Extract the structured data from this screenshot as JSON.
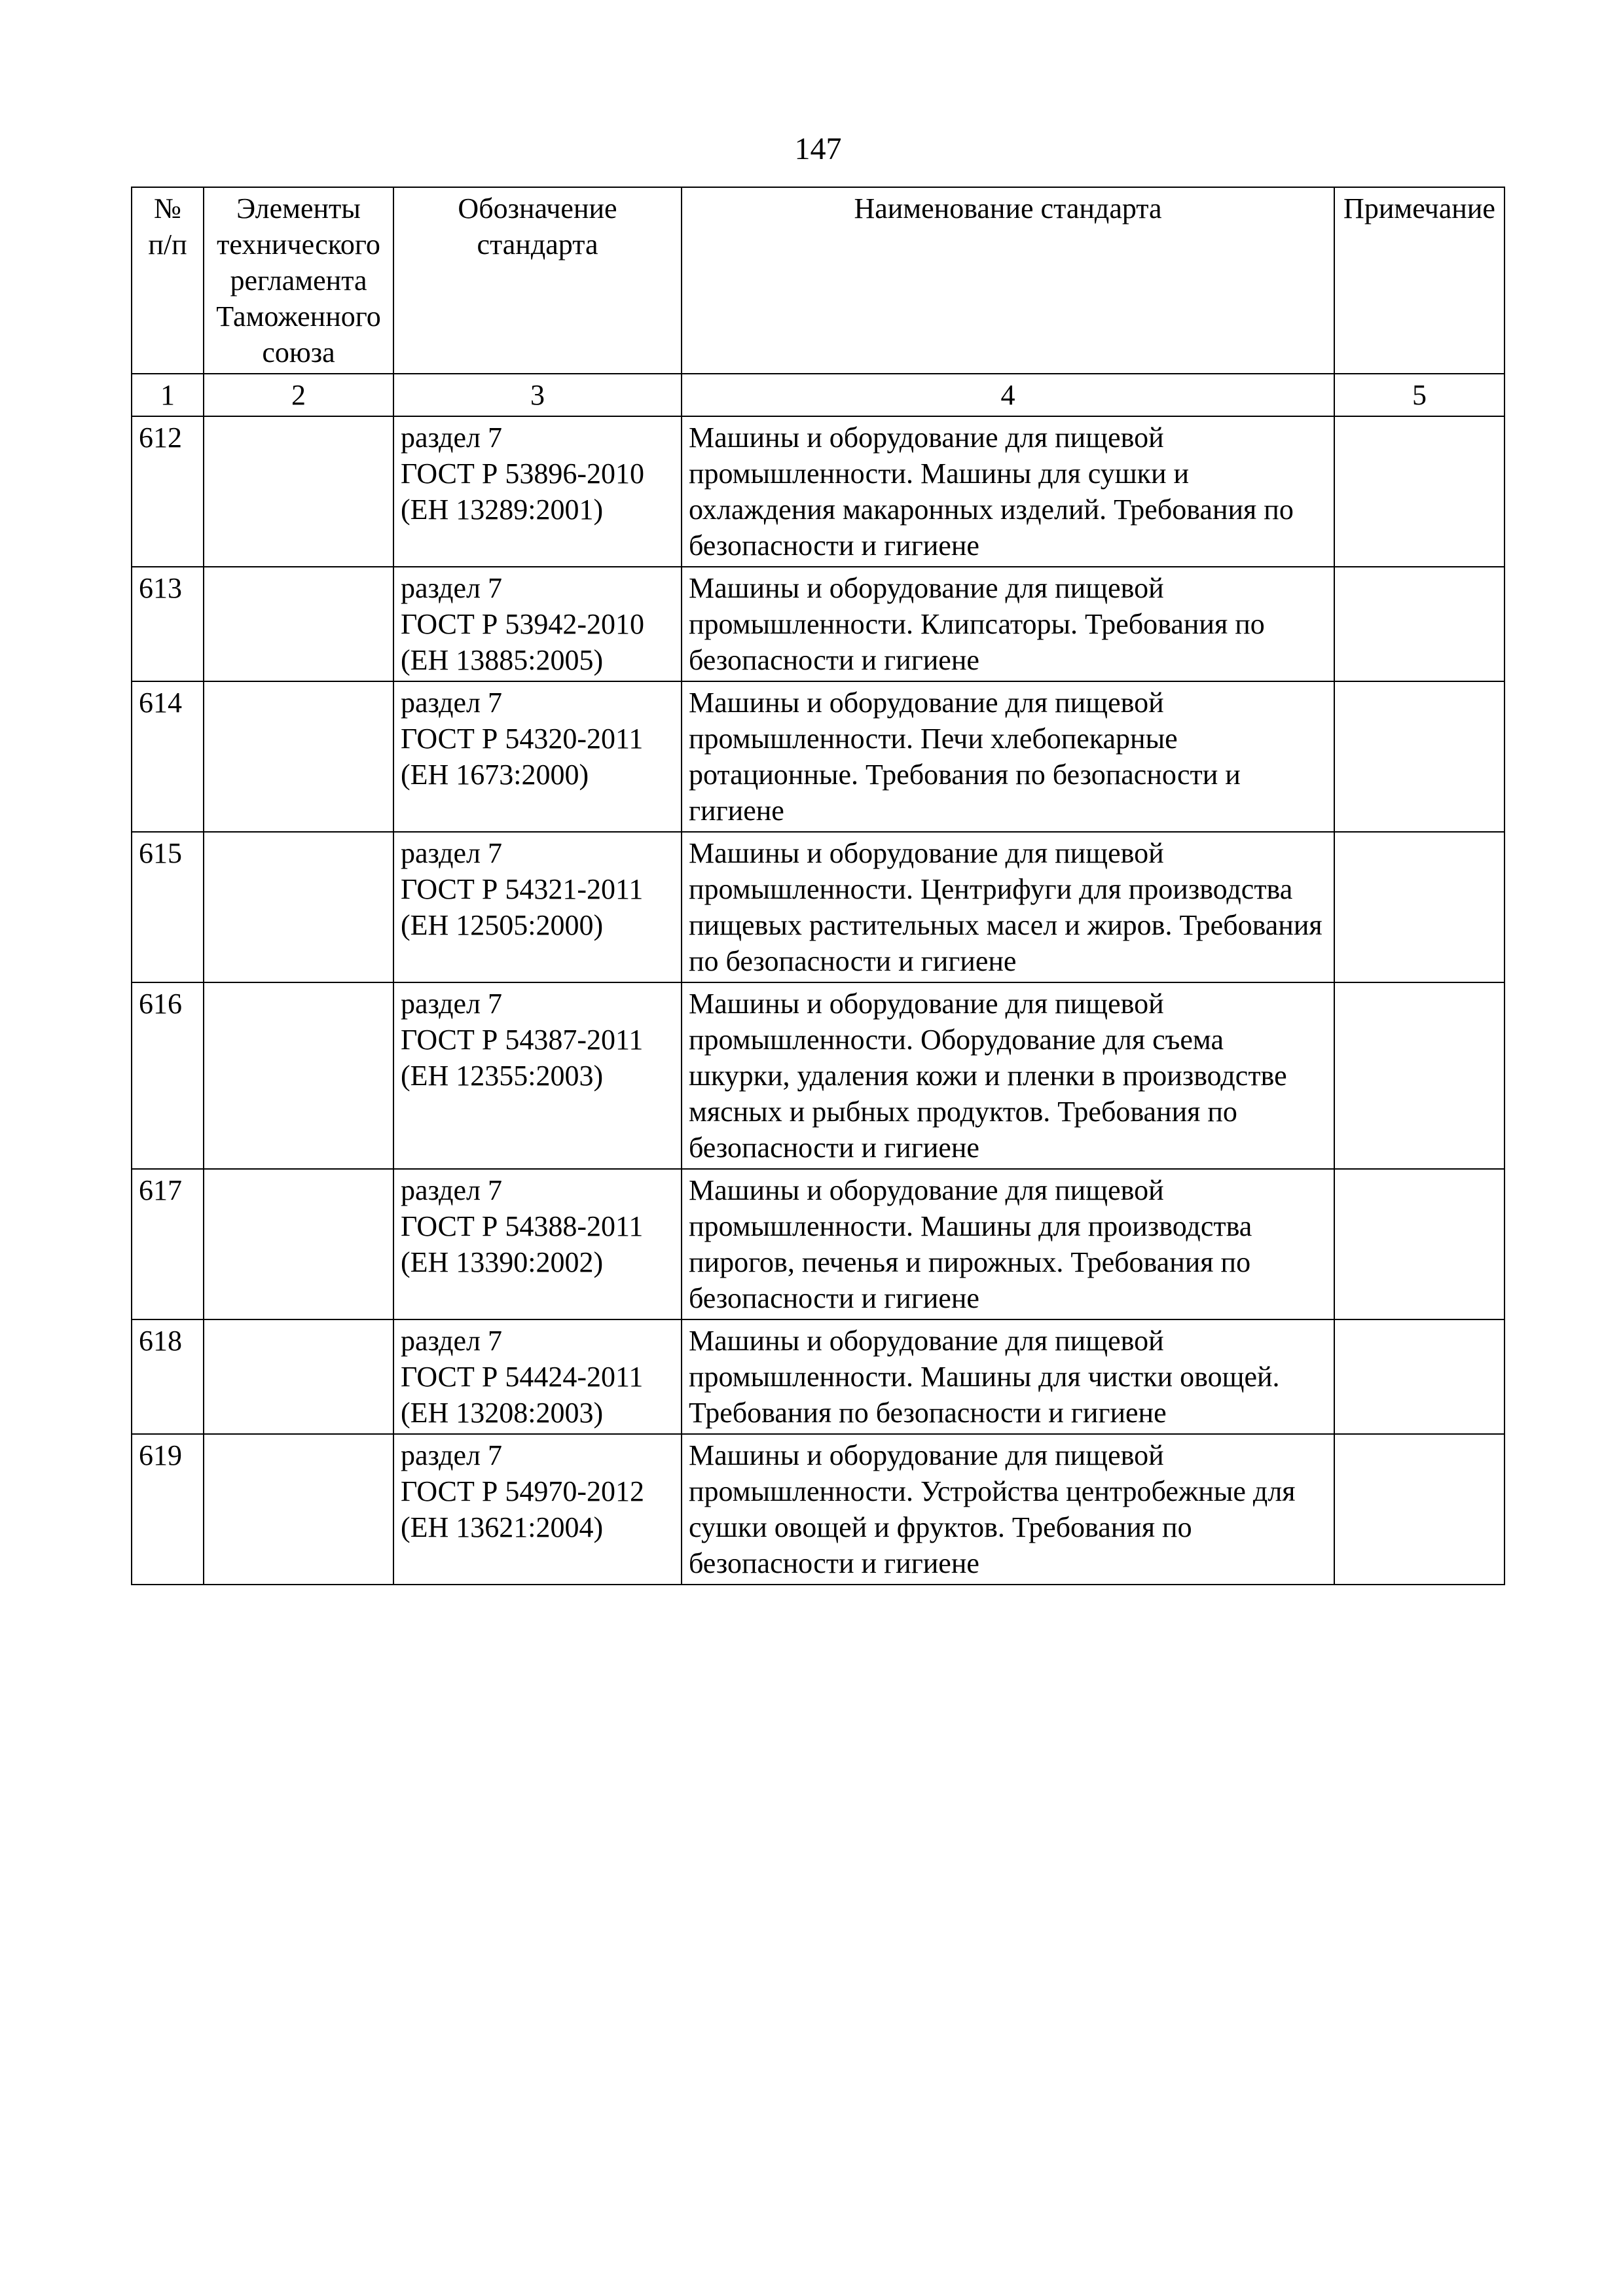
{
  "pageNumber": "147",
  "headers": {
    "c1": "№ п/п",
    "c2": "Элементы технического регламента Таможенного союза",
    "c3": "Обозначение стандарта",
    "c4": "Наименование стандарта",
    "c5": "Примечание"
  },
  "numRow": {
    "c1": "1",
    "c2": "2",
    "c3": "3",
    "c4": "4",
    "c5": "5"
  },
  "rows": [
    {
      "n": "612",
      "elem": "",
      "desig": "раздел 7\nГОСТ Р 53896-2010\n(ЕН 13289:2001)",
      "name": "Машины и оборудование для пищевой промышленности. Машины для сушки и охлаждения макаронных изделий. Требования по безопасности и гигиене",
      "note": ""
    },
    {
      "n": "613",
      "elem": "",
      "desig": "раздел 7\nГОСТ Р 53942-2010\n(ЕН 13885:2005)",
      "name": "Машины и оборудование для пищевой промышленности. Клипсаторы. Требования по безопасности и гигиене",
      "note": ""
    },
    {
      "n": "614",
      "elem": "",
      "desig": "раздел 7\nГОСТ Р 54320-2011\n(ЕН 1673:2000)",
      "name": "Машины и оборудование для пищевой промышленности. Печи хлебопекарные ротационные. Требования по безопасности и гигиене",
      "note": ""
    },
    {
      "n": "615",
      "elem": "",
      "desig": "раздел 7\nГОСТ Р 54321-2011\n(ЕН 12505:2000)",
      "name": "Машины и оборудование для пищевой промышленности. Центрифуги для производства пищевых растительных масел и жиров. Требования по безопасности и гигиене",
      "note": ""
    },
    {
      "n": "616",
      "elem": "",
      "desig": "раздел 7\nГОСТ Р 54387-2011\n(ЕН 12355:2003)",
      "name": "Машины и оборудование для пищевой промышленности. Оборудование для съема шкурки, удаления кожи и пленки в производстве мясных и рыбных продуктов. Требования по безопасности и гигиене",
      "note": ""
    },
    {
      "n": "617",
      "elem": "",
      "desig": "раздел 7\nГОСТ Р 54388-2011\n(ЕН 13390:2002)",
      "name": "Машины и оборудование для пищевой промышленности. Машины для производства пирогов, печенья и пирожных. Требования по безопасности и гигиене",
      "note": ""
    },
    {
      "n": "618",
      "elem": "",
      "desig": "раздел 7\nГОСТ Р 54424-2011\n(ЕН 13208:2003)",
      "name": "Машины и оборудование для пищевой промышленности. Машины для чистки овощей. Требования по безопасности и гигиене",
      "note": ""
    },
    {
      "n": "619",
      "elem": "",
      "desig": "раздел 7\nГОСТ Р 54970-2012\n(ЕН 13621:2004)",
      "name": "Машины и оборудование для пищевой промышленности. Устройства центробежные для сушки овощей и фруктов. Требования по безопасности и гигиене",
      "note": ""
    }
  ]
}
